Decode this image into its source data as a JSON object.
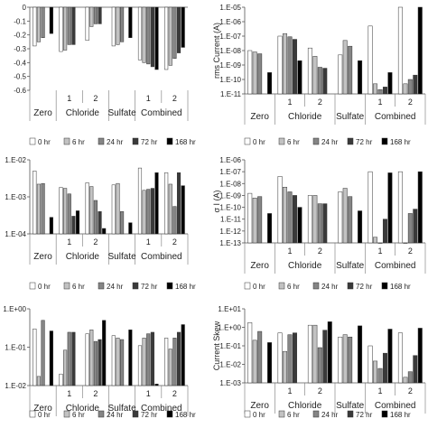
{
  "chart_data": [
    {
      "type": "bar",
      "scale": "linear",
      "ylabel": "",
      "ylim": [
        -0.6,
        0
      ],
      "yticks": [
        "0",
        "-0.1",
        "-0.2",
        "-0.3",
        "-0.4",
        "-0.5",
        "-0.6"
      ],
      "values": [
        [
          -0.28,
          -0.25,
          -0.22,
          null,
          -0.19
        ],
        [
          -0.32,
          -0.31,
          -0.27,
          -0.27,
          null
        ],
        [
          -0.24,
          -0.14,
          -0.12,
          -0.12,
          null
        ],
        [
          -0.28,
          -0.27,
          -0.25,
          null,
          -0.22
        ],
        [
          -0.38,
          -0.4,
          -0.41,
          -0.43,
          -0.45
        ],
        [
          -0.45,
          -0.42,
          -0.37,
          -0.33,
          -0.29
        ]
      ],
      "legend": false
    },
    {
      "type": "bar",
      "scale": "log",
      "ylabel": "rms Current (A)",
      "ylim": [
        -11,
        -5
      ],
      "yticks": [
        "1.E-05",
        "1.E-06",
        "1.E-07",
        "1.E-08",
        "1.E-09",
        "1.E-10",
        "1.E-11"
      ],
      "values": [
        [
          1e-08,
          8e-09,
          6e-09,
          null,
          3e-10
        ],
        [
          1e-07,
          1.5e-07,
          9e-08,
          6e-08,
          2e-09
        ],
        [
          1.5e-08,
          4e-09,
          7e-10,
          6e-10,
          null
        ],
        [
          5e-09,
          5e-08,
          2e-08,
          null,
          2e-09
        ],
        [
          5e-07,
          5e-11,
          2e-11,
          3e-11,
          3e-10
        ],
        [
          3e-05,
          5e-11,
          1e-10,
          2e-10,
          1e-05
        ]
      ],
      "legend": true
    },
    {
      "type": "bar",
      "scale": "log",
      "ylabel": "",
      "ylim": [
        -4,
        -2
      ],
      "yticks": [
        "1.E-02",
        "1.E-03",
        "1.E-04"
      ],
      "values": [
        [
          0.005,
          0.0022,
          0.0023,
          null,
          0.00028
        ],
        [
          0.0018,
          0.0017,
          0.0012,
          0.0003,
          0.00042
        ],
        [
          0.0024,
          0.0019,
          0.0008,
          0.0004,
          0.00014
        ],
        [
          0.0021,
          0.0023,
          0.0004,
          null,
          0.0002
        ],
        [
          0.006,
          0.0015,
          0.0016,
          0.0017,
          0.0045
        ],
        [
          0.0045,
          0.0022,
          0.00055,
          0.0045,
          0.002
        ]
      ],
      "legend": false
    },
    {
      "type": "bar",
      "scale": "log",
      "ylabel": "σ I (A)",
      "ylim": [
        -13,
        -6
      ],
      "yticks": [
        "1.E-06",
        "1.E-07",
        "1.E-08",
        "1.E-09",
        "1.E-10",
        "1.E-11",
        "1.E-12",
        "1.E-13"
      ],
      "values": [
        [
          1.5e-09,
          6e-10,
          8e-10,
          null,
          3e-11
        ],
        [
          4e-08,
          5e-09,
          2e-09,
          1e-09,
          1e-10
        ],
        [
          1e-09,
          1e-09,
          2e-10,
          2e-10,
          null
        ],
        [
          2e-09,
          4e-09,
          8e-10,
          null,
          5e-11
        ],
        [
          1e-07,
          3e-13,
          1e-13,
          1e-11,
          8e-08
        ],
        [
          1e-07,
          1e-13,
          3e-11,
          7e-11,
          1e-07
        ]
      ],
      "legend": true
    },
    {
      "type": "bar",
      "scale": "log",
      "ylabel": "",
      "ylim": [
        -3,
        1
      ],
      "yticks": [
        "1.E+00",
        "1.E-01",
        "1.E-02"
      ],
      "values": [
        [
          0.9,
          0.003,
          2.5,
          null,
          0.7
        ],
        [
          0.004,
          0.07,
          0.6,
          0.6,
          null
        ],
        [
          0.5,
          0.8,
          0.2,
          0.25,
          2.5
        ],
        [
          0.4,
          0.3,
          0.25,
          null,
          0.8
        ],
        [
          0.12,
          0.3,
          0.5,
          0.6,
          0.0012
        ],
        [
          0.3,
          0.08,
          0.3,
          0.6,
          1.5
        ]
      ],
      "legend": false
    },
    {
      "type": "bar",
      "scale": "log",
      "ylabel": "Current Skew",
      "ylim": [
        -3,
        1
      ],
      "yticks": [
        "1.E+01",
        "1.E+00",
        "1.E-01",
        "1.E-02",
        "1.E-03"
      ],
      "values": [
        [
          1.8,
          0.2,
          0.6,
          null,
          0.15
        ],
        [
          0.5,
          0.05,
          0.4,
          0.5,
          null
        ],
        [
          1.3,
          1.3,
          0.08,
          0.7,
          2.0
        ],
        [
          0.3,
          0.4,
          0.3,
          null,
          1.2
        ],
        [
          0.1,
          0.015,
          0.006,
          0.04,
          0.8
        ],
        [
          0.5,
          0.002,
          0.004,
          0.03,
          0.9
        ]
      ],
      "legend": true
    }
  ],
  "legend": [
    "0 hr",
    "6 hr",
    "24 hr",
    "72 hr",
    "168 hr"
  ],
  "series_colors": [
    "#ffffff",
    "#c2c2c2",
    "#858585",
    "#3a3a3a",
    "#000000"
  ],
  "x_subgroups": [
    "",
    "1",
    "2",
    "",
    "1",
    "2"
  ],
  "x_groups": [
    "Zero",
    "Chloride",
    "Sulfate",
    "Combined"
  ]
}
